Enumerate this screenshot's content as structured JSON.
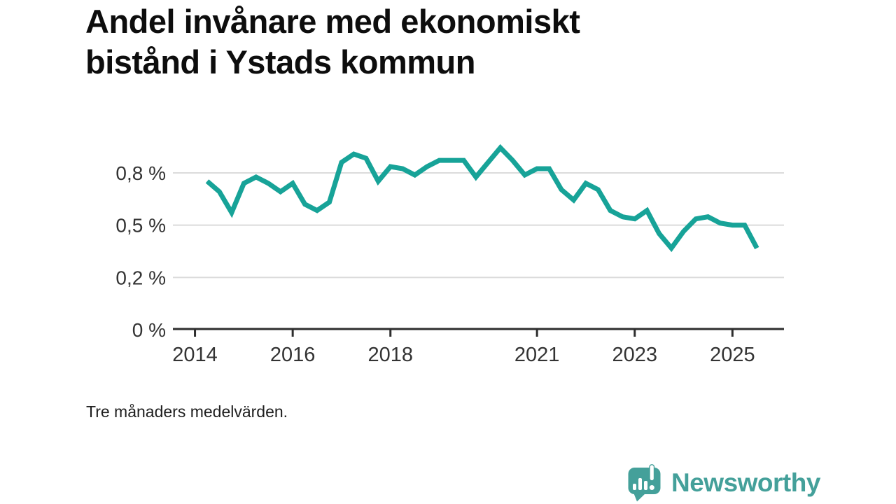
{
  "title": {
    "lines": [
      "Andel invånare med ekonomiskt",
      "bistånd i Ystads kommun"
    ]
  },
  "footnote": "Tre månaders medelvärden.",
  "branding": {
    "name": "Newsworthy",
    "icon": "speech-bubble-bar-chart-icon",
    "color": "#44A09A"
  },
  "colors": {
    "line": "#17A398",
    "grid": "#DBDBDB",
    "axis": "#2E2E2E",
    "tick_label": "#333333",
    "background": "#FFFFFF"
  },
  "chart_data": {
    "type": "line",
    "title": "Andel invånare med ekonomiskt bistånd i Ystads kommun",
    "note": "Tre månaders medelvärden.",
    "unit": "%",
    "x_start_year": 2014.25,
    "x_step_years": 0.25,
    "values": [
      0.71,
      0.66,
      0.56,
      0.7,
      0.73,
      0.7,
      0.66,
      0.7,
      0.6,
      0.57,
      0.61,
      0.8,
      0.84,
      0.82,
      0.71,
      0.78,
      0.77,
      0.74,
      0.78,
      0.81,
      0.81,
      0.81,
      0.73,
      0.8,
      0.87,
      0.81,
      0.74,
      0.77,
      0.77,
      0.67,
      0.62,
      0.7,
      0.67,
      0.57,
      0.54,
      0.53,
      0.57,
      0.46,
      0.39,
      0.47,
      0.53,
      0.54,
      0.51,
      0.5,
      0.5,
      0.39
    ],
    "yticks": [
      {
        "value": 0,
        "label": "0 %"
      },
      {
        "value": 0.25,
        "label": "0,2 %"
      },
      {
        "value": 0.5,
        "label": "0,5 %"
      },
      {
        "value": 0.75,
        "label": "0,8 %"
      }
    ],
    "xticks": [
      {
        "value": 2014,
        "label": "2014"
      },
      {
        "value": 2016,
        "label": "2016"
      },
      {
        "value": 2018,
        "label": "2018"
      },
      {
        "value": 2021,
        "label": "2021"
      },
      {
        "value": 2023,
        "label": "2023"
      },
      {
        "value": 2025,
        "label": "2025"
      }
    ],
    "ylim": [
      0,
      0.95
    ],
    "xlim": [
      2013.9,
      2025.9
    ],
    "grid": "horizontal",
    "legend": "none"
  }
}
